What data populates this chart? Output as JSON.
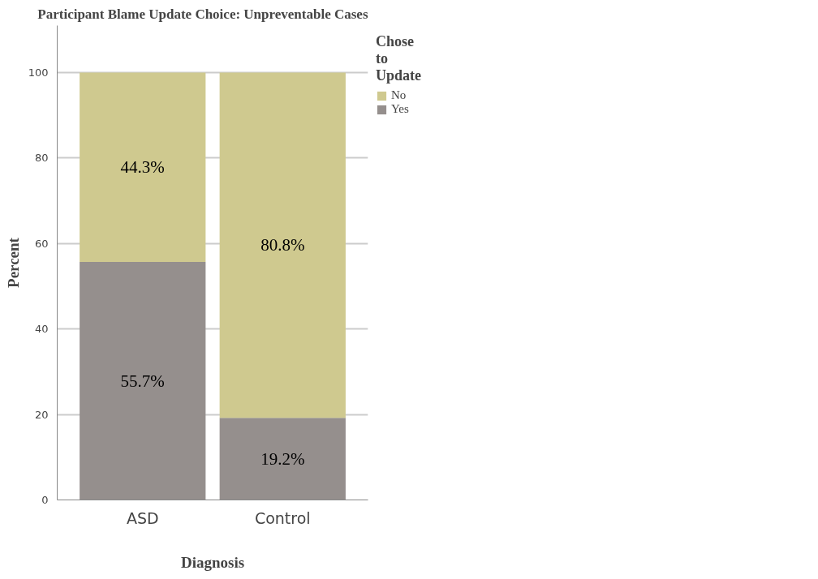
{
  "chart_data": {
    "type": "bar",
    "title": "Participant Blame Update Choice: Unpreventable Cases",
    "xlabel": "Diagnosis",
    "ylabel": "Percent",
    "legend_title": "Chose to Update",
    "categories": [
      "ASD",
      "Control"
    ],
    "stacked": true,
    "series": [
      {
        "name": "Yes",
        "color": "#958f8d",
        "values": [
          55.7,
          19.2
        ],
        "value_labels": [
          "55.7%",
          "19.2%"
        ]
      },
      {
        "name": "No",
        "color": "#cfc98f",
        "values": [
          44.3,
          80.8
        ],
        "value_labels": [
          "44.3%",
          "80.8%"
        ]
      }
    ],
    "ylim": [
      0,
      111
    ],
    "yticks": [
      0,
      20,
      40,
      60,
      80,
      100
    ],
    "grid": "y",
    "legend": "top right"
  }
}
